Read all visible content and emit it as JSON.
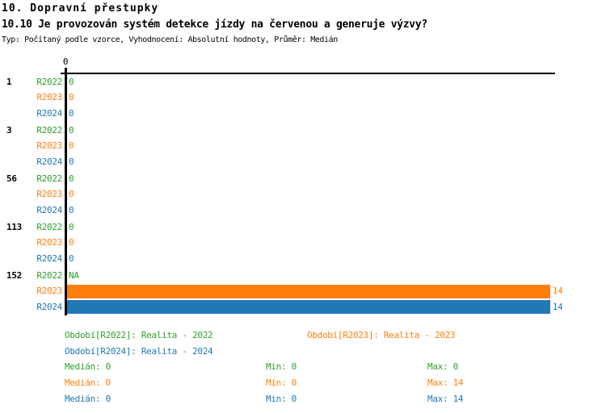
{
  "header": {
    "title": "10. Dopravní přestupky",
    "subtitle": "10.10 Je provozován systém detekce jízdy na červenou a generuje výzvy?",
    "meta": "Typ: Počítaný podle vzorce, Vyhodnocení: Absolutní hodnoty, Průměr: Medián"
  },
  "colors": {
    "green": "#2ca02c",
    "orange": "#ff7f0e",
    "blue": "#1f77b4",
    "axis": "#000000"
  },
  "chart_data": {
    "type": "bar",
    "orientation": "horizontal",
    "title": "10.10 Je provozován systém detekce jízdy na červenou a generuje výzvy?",
    "x_tick_labels": [
      "0"
    ],
    "xlim": [
      0,
      14.35
    ],
    "series": [
      "R2022",
      "R2023",
      "R2024"
    ],
    "series_colors": [
      "#2ca02c",
      "#ff7f0e",
      "#1f77b4"
    ],
    "categories": [
      "1",
      "3",
      "56",
      "113",
      "152"
    ],
    "groups": [
      {
        "label": "1",
        "values": [
          {
            "text": "0",
            "num": 0
          },
          {
            "text": "0",
            "num": 0
          },
          {
            "text": "0",
            "num": 0
          }
        ]
      },
      {
        "label": "3",
        "values": [
          {
            "text": "0",
            "num": 0
          },
          {
            "text": "0",
            "num": 0
          },
          {
            "text": "0",
            "num": 0
          }
        ]
      },
      {
        "label": "56",
        "values": [
          {
            "text": "0",
            "num": 0
          },
          {
            "text": "0",
            "num": 0
          },
          {
            "text": "0",
            "num": 0
          }
        ]
      },
      {
        "label": "113",
        "values": [
          {
            "text": "0",
            "num": 0
          },
          {
            "text": "0",
            "num": 0
          },
          {
            "text": "0",
            "num": 0
          }
        ]
      },
      {
        "label": "152",
        "values": [
          {
            "text": "NA",
            "num": 0
          },
          {
            "text": "14",
            "num": 14
          },
          {
            "text": "14",
            "num": 14
          }
        ]
      }
    ],
    "legend_position": "bottom",
    "grid": false
  },
  "legend": {
    "items": [
      {
        "text": "Období[R2022]: Realita - 2022",
        "color": "#2ca02c"
      },
      {
        "text": "Období[R2023]: Realita - 2023",
        "color": "#ff7f0e"
      },
      {
        "text": "Období[R2024]: Realita - 2024",
        "color": "#1f77b4"
      }
    ]
  },
  "stats": {
    "rows": [
      {
        "color": "#2ca02c",
        "median": "Medián: 0",
        "min": "Min: 0",
        "max": "Max: 0"
      },
      {
        "color": "#ff7f0e",
        "median": "Medián: 0",
        "min": "Min: 0",
        "max": "Max: 14"
      },
      {
        "color": "#1f77b4",
        "median": "Medián: 0",
        "min": "Min: 0",
        "max": "Max: 14"
      }
    ]
  }
}
